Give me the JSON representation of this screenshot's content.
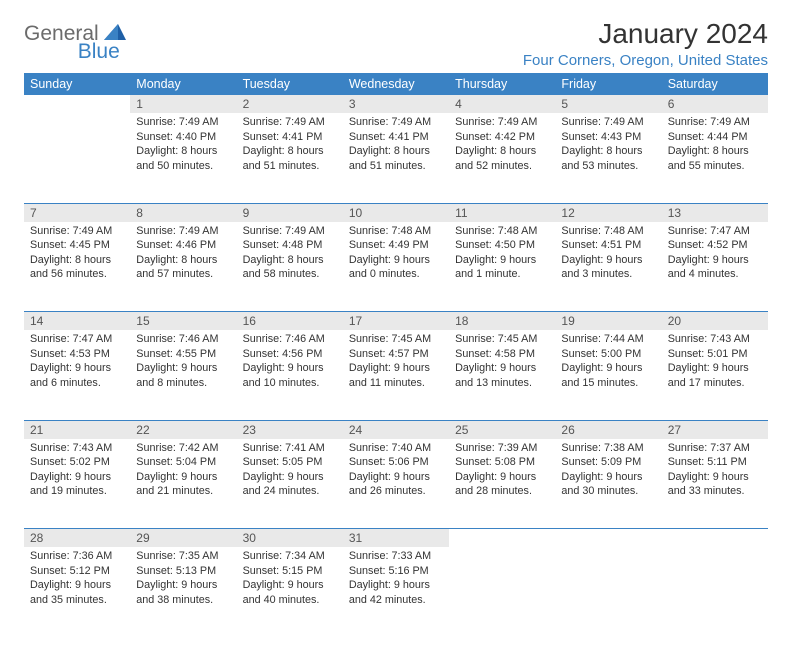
{
  "logo": {
    "text1": "General",
    "text2": "Blue"
  },
  "title": "January 2024",
  "location": "Four Corners, Oregon, United States",
  "colors": {
    "header_bg": "#3a82c4",
    "header_text": "#ffffff",
    "daynum_bg": "#e9e9e9",
    "body_text": "#333333",
    "logo_gray": "#6b6b6b",
    "logo_blue": "#3a82c4",
    "rule": "#3a82c4"
  },
  "day_headers": [
    "Sunday",
    "Monday",
    "Tuesday",
    "Wednesday",
    "Thursday",
    "Friday",
    "Saturday"
  ],
  "weeks": [
    [
      null,
      {
        "n": "1",
        "sr": "Sunrise: 7:49 AM",
        "ss": "Sunset: 4:40 PM",
        "d1": "Daylight: 8 hours",
        "d2": "and 50 minutes."
      },
      {
        "n": "2",
        "sr": "Sunrise: 7:49 AM",
        "ss": "Sunset: 4:41 PM",
        "d1": "Daylight: 8 hours",
        "d2": "and 51 minutes."
      },
      {
        "n": "3",
        "sr": "Sunrise: 7:49 AM",
        "ss": "Sunset: 4:41 PM",
        "d1": "Daylight: 8 hours",
        "d2": "and 51 minutes."
      },
      {
        "n": "4",
        "sr": "Sunrise: 7:49 AM",
        "ss": "Sunset: 4:42 PM",
        "d1": "Daylight: 8 hours",
        "d2": "and 52 minutes."
      },
      {
        "n": "5",
        "sr": "Sunrise: 7:49 AM",
        "ss": "Sunset: 4:43 PM",
        "d1": "Daylight: 8 hours",
        "d2": "and 53 minutes."
      },
      {
        "n": "6",
        "sr": "Sunrise: 7:49 AM",
        "ss": "Sunset: 4:44 PM",
        "d1": "Daylight: 8 hours",
        "d2": "and 55 minutes."
      }
    ],
    [
      {
        "n": "7",
        "sr": "Sunrise: 7:49 AM",
        "ss": "Sunset: 4:45 PM",
        "d1": "Daylight: 8 hours",
        "d2": "and 56 minutes."
      },
      {
        "n": "8",
        "sr": "Sunrise: 7:49 AM",
        "ss": "Sunset: 4:46 PM",
        "d1": "Daylight: 8 hours",
        "d2": "and 57 minutes."
      },
      {
        "n": "9",
        "sr": "Sunrise: 7:49 AM",
        "ss": "Sunset: 4:48 PM",
        "d1": "Daylight: 8 hours",
        "d2": "and 58 minutes."
      },
      {
        "n": "10",
        "sr": "Sunrise: 7:48 AM",
        "ss": "Sunset: 4:49 PM",
        "d1": "Daylight: 9 hours",
        "d2": "and 0 minutes."
      },
      {
        "n": "11",
        "sr": "Sunrise: 7:48 AM",
        "ss": "Sunset: 4:50 PM",
        "d1": "Daylight: 9 hours",
        "d2": "and 1 minute."
      },
      {
        "n": "12",
        "sr": "Sunrise: 7:48 AM",
        "ss": "Sunset: 4:51 PM",
        "d1": "Daylight: 9 hours",
        "d2": "and 3 minutes."
      },
      {
        "n": "13",
        "sr": "Sunrise: 7:47 AM",
        "ss": "Sunset: 4:52 PM",
        "d1": "Daylight: 9 hours",
        "d2": "and 4 minutes."
      }
    ],
    [
      {
        "n": "14",
        "sr": "Sunrise: 7:47 AM",
        "ss": "Sunset: 4:53 PM",
        "d1": "Daylight: 9 hours",
        "d2": "and 6 minutes."
      },
      {
        "n": "15",
        "sr": "Sunrise: 7:46 AM",
        "ss": "Sunset: 4:55 PM",
        "d1": "Daylight: 9 hours",
        "d2": "and 8 minutes."
      },
      {
        "n": "16",
        "sr": "Sunrise: 7:46 AM",
        "ss": "Sunset: 4:56 PM",
        "d1": "Daylight: 9 hours",
        "d2": "and 10 minutes."
      },
      {
        "n": "17",
        "sr": "Sunrise: 7:45 AM",
        "ss": "Sunset: 4:57 PM",
        "d1": "Daylight: 9 hours",
        "d2": "and 11 minutes."
      },
      {
        "n": "18",
        "sr": "Sunrise: 7:45 AM",
        "ss": "Sunset: 4:58 PM",
        "d1": "Daylight: 9 hours",
        "d2": "and 13 minutes."
      },
      {
        "n": "19",
        "sr": "Sunrise: 7:44 AM",
        "ss": "Sunset: 5:00 PM",
        "d1": "Daylight: 9 hours",
        "d2": "and 15 minutes."
      },
      {
        "n": "20",
        "sr": "Sunrise: 7:43 AM",
        "ss": "Sunset: 5:01 PM",
        "d1": "Daylight: 9 hours",
        "d2": "and 17 minutes."
      }
    ],
    [
      {
        "n": "21",
        "sr": "Sunrise: 7:43 AM",
        "ss": "Sunset: 5:02 PM",
        "d1": "Daylight: 9 hours",
        "d2": "and 19 minutes."
      },
      {
        "n": "22",
        "sr": "Sunrise: 7:42 AM",
        "ss": "Sunset: 5:04 PM",
        "d1": "Daylight: 9 hours",
        "d2": "and 21 minutes."
      },
      {
        "n": "23",
        "sr": "Sunrise: 7:41 AM",
        "ss": "Sunset: 5:05 PM",
        "d1": "Daylight: 9 hours",
        "d2": "and 24 minutes."
      },
      {
        "n": "24",
        "sr": "Sunrise: 7:40 AM",
        "ss": "Sunset: 5:06 PM",
        "d1": "Daylight: 9 hours",
        "d2": "and 26 minutes."
      },
      {
        "n": "25",
        "sr": "Sunrise: 7:39 AM",
        "ss": "Sunset: 5:08 PM",
        "d1": "Daylight: 9 hours",
        "d2": "and 28 minutes."
      },
      {
        "n": "26",
        "sr": "Sunrise: 7:38 AM",
        "ss": "Sunset: 5:09 PM",
        "d1": "Daylight: 9 hours",
        "d2": "and 30 minutes."
      },
      {
        "n": "27",
        "sr": "Sunrise: 7:37 AM",
        "ss": "Sunset: 5:11 PM",
        "d1": "Daylight: 9 hours",
        "d2": "and 33 minutes."
      }
    ],
    [
      {
        "n": "28",
        "sr": "Sunrise: 7:36 AM",
        "ss": "Sunset: 5:12 PM",
        "d1": "Daylight: 9 hours",
        "d2": "and 35 minutes."
      },
      {
        "n": "29",
        "sr": "Sunrise: 7:35 AM",
        "ss": "Sunset: 5:13 PM",
        "d1": "Daylight: 9 hours",
        "d2": "and 38 minutes."
      },
      {
        "n": "30",
        "sr": "Sunrise: 7:34 AM",
        "ss": "Sunset: 5:15 PM",
        "d1": "Daylight: 9 hours",
        "d2": "and 40 minutes."
      },
      {
        "n": "31",
        "sr": "Sunrise: 7:33 AM",
        "ss": "Sunset: 5:16 PM",
        "d1": "Daylight: 9 hours",
        "d2": "and 42 minutes."
      },
      null,
      null,
      null
    ]
  ]
}
